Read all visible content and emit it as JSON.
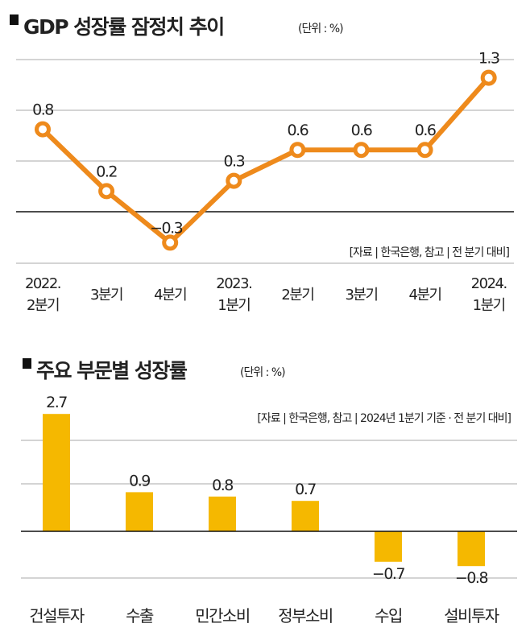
{
  "chart_data": [
    {
      "type": "line",
      "title": "GDP 성장률 잠정치 추이",
      "unit": "(단위 : %)",
      "source": "[자료 | 한국은행, 참고 | 전 분기 대비]",
      "categories": [
        [
          "2022.",
          "2분기"
        ],
        [
          "3분기"
        ],
        [
          "4분기"
        ],
        [
          "2023.",
          "1분기"
        ],
        [
          "2분기"
        ],
        [
          "3분기"
        ],
        [
          "4분기"
        ],
        [
          "2024.",
          "1분기"
        ]
      ],
      "values": [
        0.8,
        0.2,
        -0.3,
        0.3,
        0.6,
        0.6,
        0.6,
        1.3
      ],
      "labels": [
        "0.8",
        "0.2",
        "−0.3",
        "0.3",
        "0.6",
        "0.6",
        "0.6",
        "1.3"
      ],
      "color": "#ee8a1c",
      "grid": true
    },
    {
      "type": "bar",
      "title": "주요 부문별 성장률",
      "unit": "(단위 : %)",
      "source": "[자료 | 한국은행, 참고 | 2024년 1분기 기준 · 전 분기 대비]",
      "categories": [
        "건설투자",
        "수출",
        "민간소비",
        "정부소비",
        "수입",
        "설비투자"
      ],
      "values": [
        2.7,
        0.9,
        0.8,
        0.7,
        -0.7,
        -0.8
      ],
      "labels": [
        "2.7",
        "0.9",
        "0.8",
        "0.7",
        "−0.7",
        "−0.8"
      ],
      "color": "#f5b800",
      "grid": true
    }
  ]
}
